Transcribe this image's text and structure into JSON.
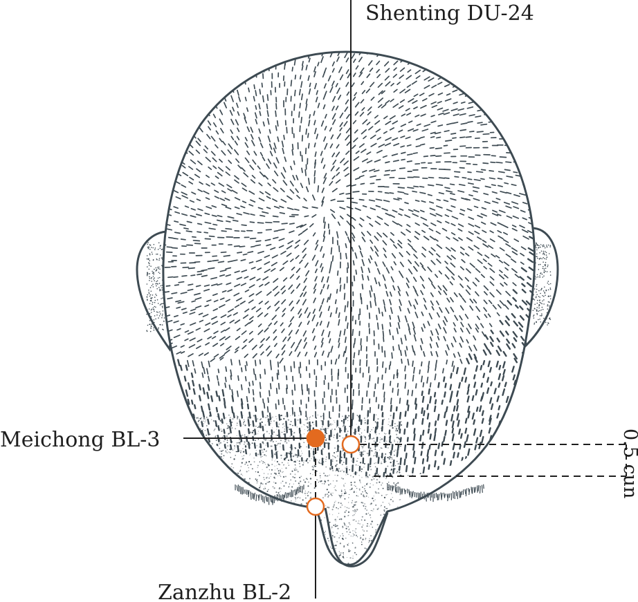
{
  "labels": {
    "shenting": "Shenting DU-24",
    "meichong": "Meichong BL-3",
    "zanzhu": "Zanzhu BL-2",
    "distance": "0.5 cun"
  },
  "colors": {
    "accent": "#e36a1f",
    "ink": "#3d4a52",
    "line": "#1e1e1e"
  },
  "points": {
    "meichong": {
      "style": "filled"
    },
    "shenting": {
      "style": "hollow"
    },
    "zanzhu": {
      "style": "hollow"
    }
  }
}
